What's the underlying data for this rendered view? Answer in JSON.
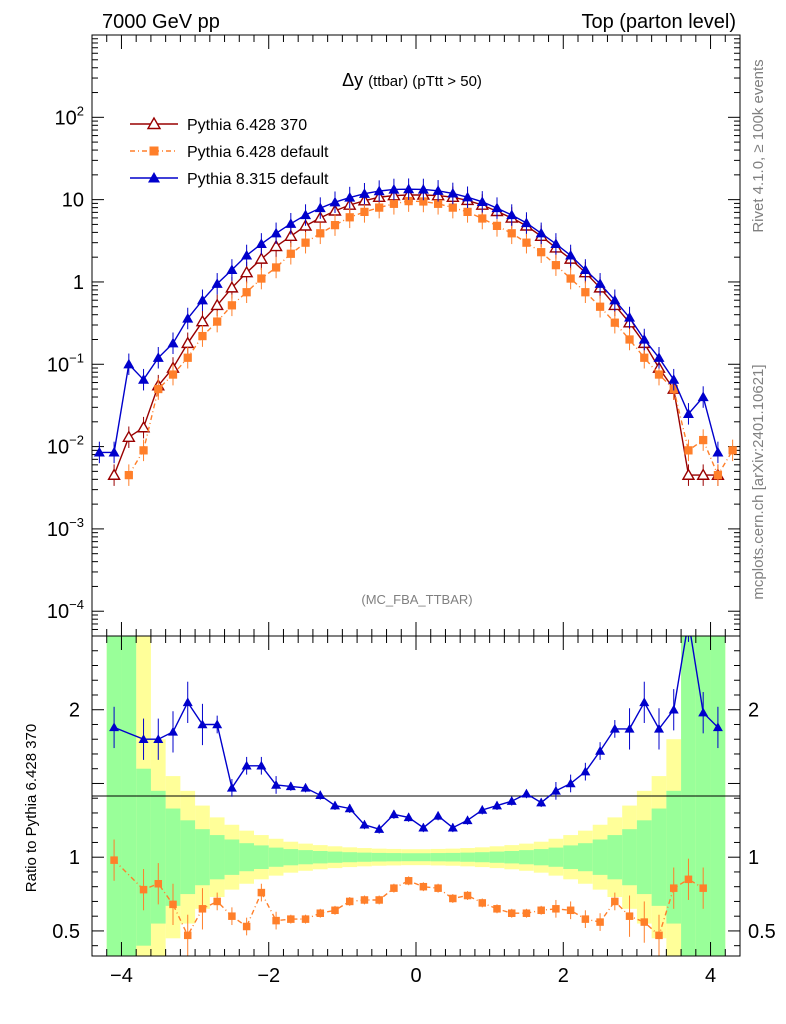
{
  "header": {
    "left": "7000 GeV pp",
    "right": "Top (parton level)"
  },
  "side_labels": {
    "rivet": "Rivet 4.1.0, ≥ 100k events",
    "mcplots": "mcplots.cern.ch [arXiv:2401.10621]"
  },
  "chart_data": [
    {
      "type": "line",
      "panel": "main",
      "title": "Δy",
      "title_suffix": "(ttbar) (pTtt > 50)",
      "watermark": "(MC_FBA_TTBAR)",
      "yscale": "log",
      "xlim": [
        -4.4,
        4.4
      ],
      "ylim": [
        5e-05,
        1000
      ],
      "xlabel": "",
      "ylabel": "",
      "legend_position": "top-left",
      "x": [
        -4.3,
        -4.1,
        -3.9,
        -3.7,
        -3.5,
        -3.3,
        -3.1,
        -2.9,
        -2.7,
        -2.5,
        -2.3,
        -2.1,
        -1.9,
        -1.7,
        -1.5,
        -1.3,
        -1.1,
        -0.9,
        -0.7,
        -0.5,
        -0.3,
        -0.1,
        0.1,
        0.3,
        0.5,
        0.7,
        0.9,
        1.1,
        1.3,
        1.5,
        1.7,
        1.9,
        2.1,
        2.3,
        2.5,
        2.7,
        2.9,
        3.1,
        3.3,
        3.5,
        3.7,
        3.9,
        4.1,
        4.3
      ],
      "series": [
        {
          "name": "Pythia 6.428 370",
          "color": "#990000",
          "marker": "open-triangle",
          "line": "solid",
          "values": [
            null,
            0.0045,
            0.013,
            0.017,
            0.055,
            0.09,
            0.18,
            0.33,
            0.52,
            0.85,
            1.3,
            1.9,
            2.7,
            3.6,
            4.8,
            6.0,
            7.3,
            8.6,
            9.7,
            10.7,
            11.2,
            11.4,
            11.4,
            11.2,
            10.7,
            9.8,
            8.6,
            7.2,
            6.0,
            4.8,
            3.6,
            2.6,
            1.9,
            1.3,
            0.85,
            0.52,
            0.32,
            0.18,
            0.09,
            0.05,
            0.0045,
            0.0045,
            0.0045,
            null
          ]
        },
        {
          "name": "Pythia 6.428 default",
          "color": "#ff7f2a",
          "marker": "filled-square",
          "line": "dash-dot",
          "values": [
            null,
            null,
            0.0045,
            0.009,
            0.05,
            0.075,
            0.12,
            0.22,
            0.33,
            0.52,
            0.75,
            1.1,
            1.5,
            2.2,
            3.0,
            3.9,
            4.9,
            6.1,
            7.1,
            8.0,
            8.9,
            9.6,
            9.5,
            8.9,
            8.0,
            7.1,
            5.9,
            4.8,
            3.9,
            3.0,
            2.3,
            1.6,
            1.1,
            0.75,
            0.5,
            0.32,
            0.2,
            0.12,
            0.075,
            0.05,
            0.009,
            0.012,
            0.0045,
            0.009
          ]
        },
        {
          "name": "Pythia 8.315 default",
          "color": "#0000cc",
          "marker": "filled-triangle",
          "line": "solid",
          "values": [
            0.0085,
            0.0085,
            0.1,
            0.065,
            0.12,
            0.18,
            0.36,
            0.6,
            0.95,
            1.4,
            2.1,
            2.9,
            3.9,
            5.1,
            6.5,
            7.9,
            9.3,
            10.6,
            11.8,
            12.7,
            13.3,
            13.4,
            13.3,
            12.8,
            11.9,
            10.7,
            9.4,
            7.9,
            6.5,
            5.2,
            3.9,
            2.9,
            2.1,
            1.4,
            0.95,
            0.6,
            0.37,
            0.2,
            0.12,
            0.065,
            0.025,
            0.04,
            0.0085,
            null
          ]
        }
      ]
    },
    {
      "type": "line",
      "panel": "ratio",
      "ylabel": "Ratio to Pythia 6.428 370",
      "xlim": [
        -4.4,
        4.4
      ],
      "ylim": [
        0.33,
        2.5
      ],
      "x_ticks": [
        -4,
        -2,
        0,
        2,
        4
      ],
      "y_ticks": [
        0.5,
        1,
        2
      ],
      "reference_line": 1,
      "bands": {
        "x_edges": [
          -4.2,
          -4.0,
          -3.8,
          -3.6,
          -3.4,
          -3.2,
          -3.0,
          -2.8,
          -2.6,
          -2.4,
          -2.2,
          -2.0,
          -1.8,
          -1.6,
          -1.4,
          -1.2,
          -1.0,
          -0.8,
          -0.6,
          -0.4,
          -0.2,
          0.0,
          0.2,
          0.4,
          0.6,
          0.8,
          1.0,
          1.2,
          1.4,
          1.6,
          1.8,
          2.0,
          2.2,
          2.4,
          2.6,
          2.8,
          3.0,
          3.2,
          3.4,
          3.6,
          3.8,
          4.0,
          4.2
        ],
        "inner_green": [
          1.5,
          1.5,
          0.6,
          0.45,
          0.33,
          0.25,
          0.19,
          0.15,
          0.12,
          0.095,
          0.08,
          0.065,
          0.055,
          0.048,
          0.042,
          0.038,
          0.034,
          0.031,
          0.029,
          0.028,
          0.027,
          0.027,
          0.028,
          0.029,
          0.031,
          0.034,
          0.038,
          0.042,
          0.048,
          0.055,
          0.065,
          0.08,
          0.095,
          0.12,
          0.15,
          0.19,
          0.25,
          0.33,
          0.45,
          1.5,
          1.5,
          1.5
        ],
        "outer_yellow": [
          1.5,
          1.5,
          1.5,
          0.8,
          0.55,
          0.45,
          0.35,
          0.27,
          0.22,
          0.18,
          0.15,
          0.125,
          0.105,
          0.092,
          0.082,
          0.074,
          0.067,
          0.062,
          0.058,
          0.056,
          0.054,
          0.054,
          0.056,
          0.058,
          0.062,
          0.067,
          0.074,
          0.082,
          0.092,
          0.105,
          0.125,
          0.15,
          0.18,
          0.22,
          0.27,
          0.35,
          0.45,
          0.55,
          0.8,
          1.5,
          1.5,
          1.5
        ],
        "inner_color": "#99ff99",
        "outer_color": "#ffff99"
      },
      "series": [
        {
          "name": "Pythia 6.428 default",
          "color": "#ff7f2a",
          "values": [
            null,
            0.98,
            null,
            0.78,
            0.82,
            0.68,
            0.47,
            0.65,
            0.7,
            0.6,
            0.53,
            0.76,
            0.57,
            0.58,
            0.58,
            0.62,
            0.64,
            0.7,
            0.71,
            0.71,
            0.79,
            0.84,
            0.8,
            0.79,
            0.72,
            0.74,
            0.69,
            0.65,
            0.62,
            0.62,
            0.64,
            0.65,
            0.64,
            0.58,
            0.56,
            0.7,
            0.6,
            0.56,
            0.47,
            0.79,
            0.85,
            0.79,
            null,
            null
          ]
        },
        {
          "name": "Pythia 8.315 default",
          "color": "#0000cc",
          "values": [
            null,
            1.88,
            null,
            1.8,
            1.8,
            1.85,
            2.05,
            1.9,
            1.9,
            1.47,
            1.62,
            1.62,
            1.49,
            1.48,
            1.47,
            1.42,
            1.35,
            1.33,
            1.22,
            1.19,
            1.29,
            1.27,
            1.2,
            1.28,
            1.2,
            1.25,
            1.32,
            1.35,
            1.38,
            1.43,
            1.37,
            1.45,
            1.5,
            1.58,
            1.72,
            1.87,
            1.87,
            2.05,
            1.87,
            2.0,
            2.6,
            1.98,
            1.88,
            null
          ]
        }
      ]
    }
  ]
}
